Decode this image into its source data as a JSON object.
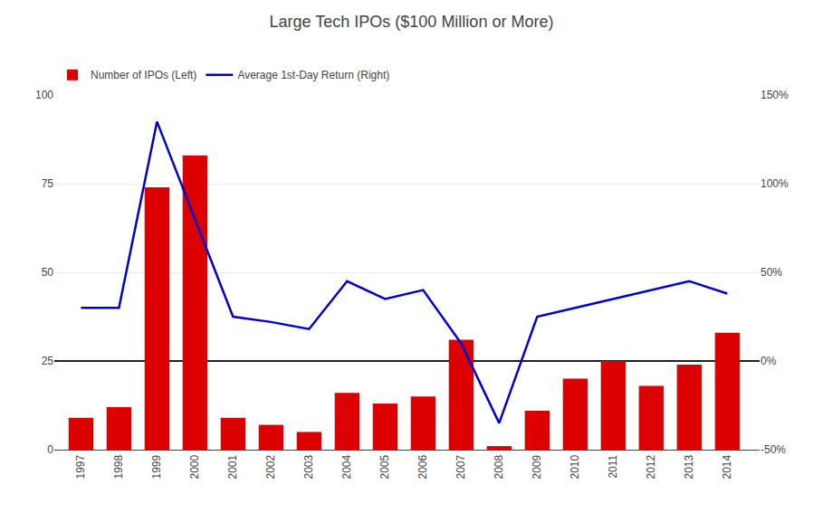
{
  "chart_data": {
    "type": "bar",
    "title": "Large Tech IPOs ($100 Million or More)",
    "x": [
      1997,
      1998,
      1999,
      2000,
      2001,
      2002,
      2003,
      2004,
      2005,
      2006,
      2007,
      2008,
      2009,
      2010,
      2011,
      2012,
      2013,
      2014
    ],
    "xlim": [
      1996.3,
      2014.85
    ],
    "xticks": [
      1997,
      1998,
      1999,
      2000,
      2001,
      2002,
      2003,
      2004,
      2005,
      2006,
      2007,
      2008,
      2009,
      2010,
      2011,
      2012,
      2013,
      2014
    ],
    "ylim": [
      0,
      100
    ],
    "yticks": [
      0,
      25,
      50,
      75,
      100
    ],
    "y2lim": [
      -50,
      150
    ],
    "y2ticks": [
      {
        "value": -50,
        "label": "-50%"
      },
      {
        "value": 0,
        "label": "0%"
      },
      {
        "value": 50,
        "label": "50%"
      },
      {
        "value": 100,
        "label": "100%"
      },
      {
        "value": 150,
        "label": "150%"
      }
    ],
    "grid": true,
    "legend": "upper left",
    "series": [
      {
        "name": "Number of IPOs (Left)",
        "type": "bar",
        "color": "#DD0000",
        "values": [
          9,
          12,
          74,
          83,
          9,
          7,
          5,
          16,
          13,
          15,
          31,
          1,
          11,
          20,
          25,
          18,
          24,
          33
        ]
      },
      {
        "name": "Average 1st-Day Return (Right)",
        "type": "line",
        "axis": "y2",
        "color": "#0000CC",
        "values": [
          30,
          30,
          135,
          80,
          25,
          22,
          18,
          45,
          35,
          40,
          10,
          -35,
          25,
          30,
          35,
          40,
          45,
          38
        ]
      }
    ]
  }
}
